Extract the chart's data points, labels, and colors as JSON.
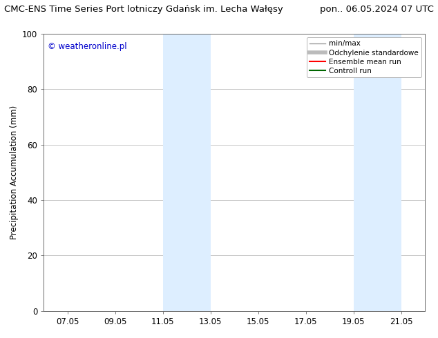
{
  "title_left": "CMC-ENS Time Series Port lotniczy Gdańsk im. Lecha Wałęsy",
  "title_right": "pon.. 06.05.2024 07 UTC",
  "ylabel": "Precipitation Accumulation (mm)",
  "watermark": "© weatheronline.pl",
  "watermark_color": "#0000cc",
  "ylim": [
    0,
    100
  ],
  "yticks": [
    0,
    20,
    40,
    60,
    80,
    100
  ],
  "xtick_labels": [
    "07.05",
    "09.05",
    "11.05",
    "13.05",
    "15.05",
    "17.05",
    "19.05",
    "21.05"
  ],
  "xtick_positions": [
    1,
    3,
    5,
    7,
    9,
    11,
    13,
    15
  ],
  "xlim": [
    0,
    16
  ],
  "shade_regions": [
    {
      "x_start": 5,
      "x_end": 7
    },
    {
      "x_start": 13,
      "x_end": 15
    }
  ],
  "shade_color": "#ddeeff",
  "shade_alpha": 1.0,
  "grid_color": "#bbbbbb",
  "legend_items": [
    {
      "label": "min/max",
      "color": "#999999",
      "lw": 1.0
    },
    {
      "label": "Odchylenie standardowe",
      "color": "#bbbbbb",
      "lw": 4
    },
    {
      "label": "Ensemble mean run",
      "color": "#ff0000",
      "lw": 1.5
    },
    {
      "label": "Controll run",
      "color": "#006600",
      "lw": 1.5
    }
  ],
  "bg_color": "#ffffff",
  "plot_bg_color": "#ffffff",
  "title_fontsize": 9.5,
  "axis_fontsize": 8.5,
  "tick_fontsize": 8.5,
  "legend_fontsize": 7.5,
  "watermark_fontsize": 8.5
}
